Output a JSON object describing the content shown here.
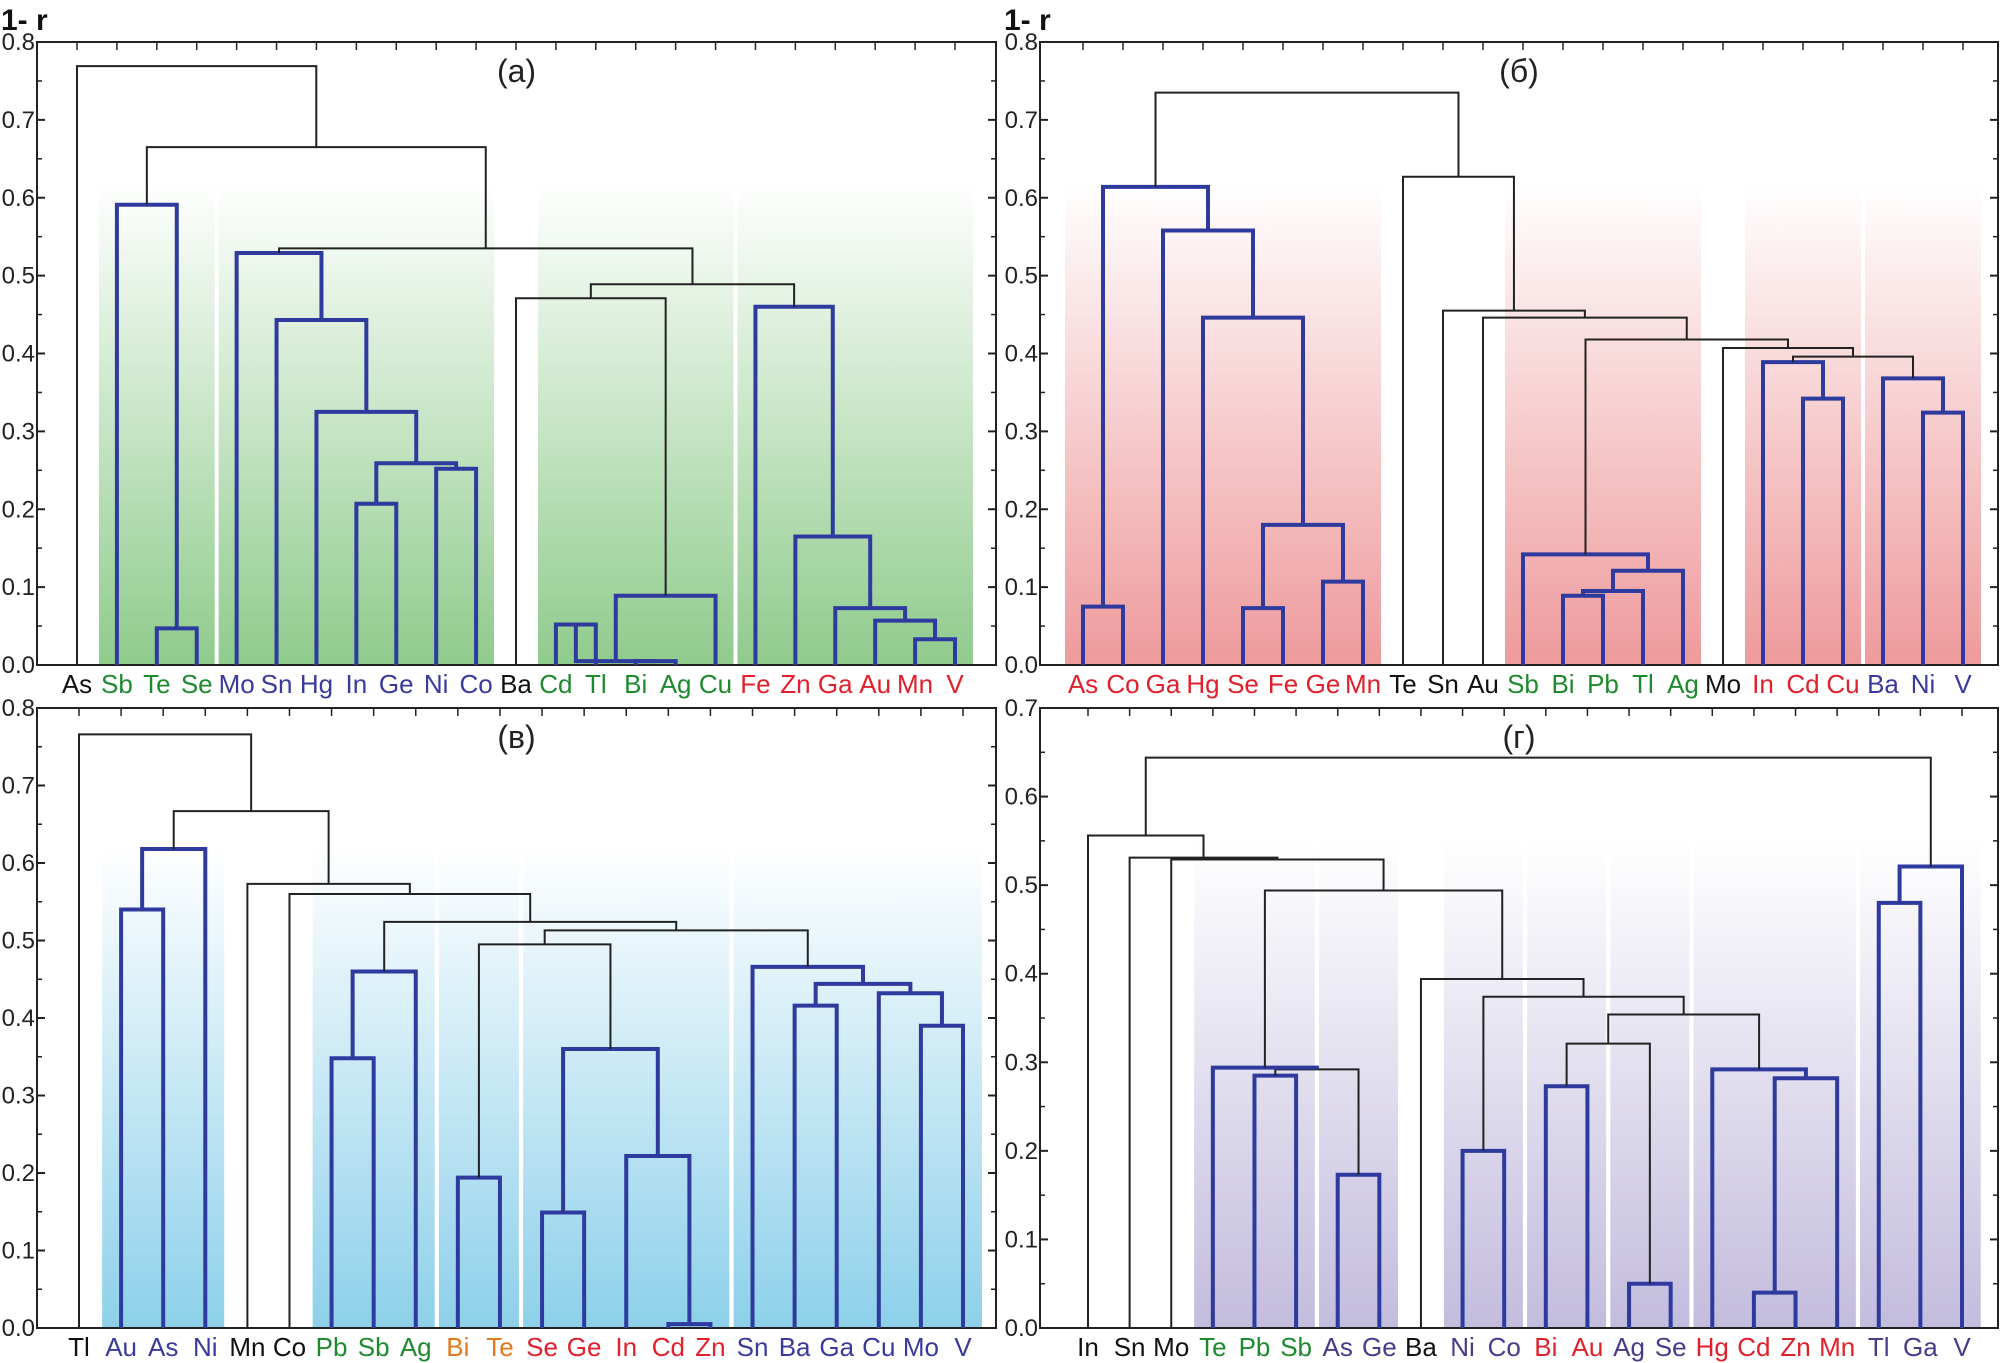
{
  "colors": {
    "cluster_line": "#2E3A9E",
    "tree_line": "#222222",
    "green_label": "#1E8A2E",
    "blue_label": "#3A3A9E",
    "red_label": "#E0202A",
    "orange_label": "#E07A1E",
    "purple_label": "#4B3A8A",
    "black_label": "#111111",
    "bg_green": "#8FCB8C",
    "bg_red": "#EE9A9C",
    "bg_blue": "#8DD0EA",
    "bg_purple": "#C3BCDD"
  },
  "chart_data": [
    {
      "type": "dendrogram",
      "title": "(а)",
      "ylabel": "1- r",
      "ylim": [
        0,
        0.8
      ],
      "yticks": [
        "0.0",
        "0.1",
        "0.2",
        "0.3",
        "0.4",
        "0.5",
        "0.6",
        "0.7",
        "0.8"
      ],
      "bg": "bg_green",
      "leaves": [
        {
          "name": "As",
          "color": "black_label"
        },
        {
          "name": "Sb",
          "color": "green_label"
        },
        {
          "name": "Te",
          "color": "green_label"
        },
        {
          "name": "Se",
          "color": "green_label"
        },
        {
          "name": "Mo",
          "color": "blue_label"
        },
        {
          "name": "Sn",
          "color": "blue_label"
        },
        {
          "name": "Hg",
          "color": "blue_label"
        },
        {
          "name": "In",
          "color": "blue_label"
        },
        {
          "name": "Ge",
          "color": "blue_label"
        },
        {
          "name": "Ni",
          "color": "blue_label"
        },
        {
          "name": "Co",
          "color": "blue_label"
        },
        {
          "name": "Ba",
          "color": "black_label"
        },
        {
          "name": "Cd",
          "color": "green_label"
        },
        {
          "name": "Tl",
          "color": "green_label"
        },
        {
          "name": "Bi",
          "color": "green_label"
        },
        {
          "name": "Ag",
          "color": "green_label"
        },
        {
          "name": "Cu",
          "color": "green_label"
        },
        {
          "name": "Fe",
          "color": "red_label"
        },
        {
          "name": "Zn",
          "color": "red_label"
        },
        {
          "name": "Ga",
          "color": "red_label"
        },
        {
          "name": "Au",
          "color": "red_label"
        },
        {
          "name": "Mn",
          "color": "red_label"
        },
        {
          "name": "V",
          "color": "red_label"
        }
      ],
      "bands": [
        [
          1,
          3
        ],
        [
          4,
          10
        ],
        [
          12,
          16
        ],
        [
          17,
          22
        ]
      ],
      "merges": [
        {
          "l": 2,
          "r": 3,
          "h": 0.047,
          "c": 1
        },
        {
          "l": 1,
          "r": "m0",
          "h": 0.591,
          "c": 1
        },
        {
          "l": 7,
          "r": 8,
          "h": 0.207,
          "c": 1
        },
        {
          "l": 9,
          "r": 10,
          "h": 0.252,
          "c": 1
        },
        {
          "l": "m2",
          "r": "m3",
          "h": 0.259,
          "c": 1
        },
        {
          "l": 6,
          "r": "m4",
          "h": 0.325,
          "c": 1
        },
        {
          "l": 5,
          "r": "m5",
          "h": 0.443,
          "c": 1
        },
        {
          "l": 4,
          "r": "m6",
          "h": 0.529,
          "c": 1
        },
        {
          "l": 14,
          "r": 15,
          "h": 0.005,
          "c": 1
        },
        {
          "l": 12,
          "r": 13,
          "h": 0.052,
          "c": 1
        },
        {
          "l": "m9",
          "r": "m8",
          "h": 0.005,
          "c": 1
        },
        {
          "l": "m10",
          "r": 16,
          "h": 0.089,
          "c": 1
        },
        {
          "l": 11,
          "r": "m11",
          "h": 0.471,
          "c": 0
        },
        {
          "l": 21,
          "r": 22,
          "h": 0.033,
          "c": 1
        },
        {
          "l": 20,
          "r": "m13",
          "h": 0.057,
          "c": 1
        },
        {
          "l": 19,
          "r": "m14",
          "h": 0.073,
          "c": 1
        },
        {
          "l": "m15",
          "r": "m14x",
          "h": 0.165,
          "c": 1
        },
        {
          "l": 17,
          "r": "m16",
          "h": 0.46,
          "c": 1
        },
        {
          "l": "m12",
          "r": "m17",
          "h": 0.489,
          "c": 0
        },
        {
          "l": "m7",
          "r": "m18",
          "h": 0.535,
          "c": 0
        },
        {
          "l": "m1",
          "r": "m19",
          "h": 0.665,
          "c": 0
        },
        {
          "l": 0,
          "r": "m20",
          "h": 0.769,
          "c": 0
        }
      ]
    },
    {
      "type": "dendrogram",
      "title": "(б)",
      "ylabel": "1- r",
      "ylim": [
        0,
        0.8
      ],
      "yticks": [
        "0.0",
        "0.1",
        "0.2",
        "0.3",
        "0.4",
        "0.5",
        "0.6",
        "0.7",
        "0.8"
      ],
      "bg": "bg_red",
      "leaves": [
        {
          "name": "As",
          "color": "red_label"
        },
        {
          "name": "Co",
          "color": "red_label"
        },
        {
          "name": "Ga",
          "color": "red_label"
        },
        {
          "name": "Hg",
          "color": "red_label"
        },
        {
          "name": "Se",
          "color": "red_label"
        },
        {
          "name": "Fe",
          "color": "red_label"
        },
        {
          "name": "Ge",
          "color": "red_label"
        },
        {
          "name": "Mn",
          "color": "red_label"
        },
        {
          "name": "Te",
          "color": "black_label"
        },
        {
          "name": "Sn",
          "color": "black_label"
        },
        {
          "name": "Au",
          "color": "black_label"
        },
        {
          "name": "Sb",
          "color": "green_label"
        },
        {
          "name": "Bi",
          "color": "green_label"
        },
        {
          "name": "Pb",
          "color": "green_label"
        },
        {
          "name": "Tl",
          "color": "green_label"
        },
        {
          "name": "Ag",
          "color": "green_label"
        },
        {
          "name": "Mo",
          "color": "black_label"
        },
        {
          "name": "In",
          "color": "red_label"
        },
        {
          "name": "Cd",
          "color": "red_label"
        },
        {
          "name": "Cu",
          "color": "red_label"
        },
        {
          "name": "Ba",
          "color": "blue_label"
        },
        {
          "name": "Ni",
          "color": "blue_label"
        },
        {
          "name": "V",
          "color": "blue_label"
        }
      ],
      "bands": [
        [
          0,
          7
        ],
        [
          11,
          15
        ],
        [
          17,
          19
        ],
        [
          20,
          22
        ]
      ],
      "merges": [
        {
          "l": 0,
          "r": 1,
          "h": 0.075,
          "c": 1
        },
        {
          "l": 4,
          "r": 5,
          "h": 0.073,
          "c": 1
        },
        {
          "l": 6,
          "r": 7,
          "h": 0.107,
          "c": 1
        },
        {
          "l": "m1",
          "r": "m2",
          "h": 0.18,
          "c": 1
        },
        {
          "l": 3,
          "r": "m3",
          "h": 0.446,
          "c": 1
        },
        {
          "l": 2,
          "r": "m4",
          "h": 0.558,
          "c": 1
        },
        {
          "l": "m0",
          "r": "m5",
          "h": 0.614,
          "c": 1
        },
        {
          "l": 12,
          "r": 13,
          "h": 0.089,
          "c": 1
        },
        {
          "l": "m7",
          "r": 14,
          "h": 0.095,
          "c": 1
        },
        {
          "l": "m8",
          "r": 15,
          "h": 0.121,
          "c": 1
        },
        {
          "l": 11,
          "r": "m9",
          "h": 0.142,
          "c": 1
        },
        {
          "l": 18,
          "r": 19,
          "h": 0.342,
          "c": 1
        },
        {
          "l": 17,
          "r": "m11",
          "h": 0.389,
          "c": 1
        },
        {
          "l": 21,
          "r": 22,
          "h": 0.324,
          "c": 1
        },
        {
          "l": 20,
          "r": "m13",
          "h": 0.368,
          "c": 1
        },
        {
          "l": "m12",
          "r": "m14",
          "h": 0.396,
          "c": 0
        },
        {
          "l": 16,
          "r": "m15",
          "h": 0.407,
          "c": 0
        },
        {
          "l": "m10",
          "r": "m16",
          "h": 0.418,
          "c": 0
        },
        {
          "l": 10,
          "r": "m17",
          "h": 0.446,
          "c": 0
        },
        {
          "l": 9,
          "r": "m18",
          "h": 0.455,
          "c": 0
        },
        {
          "l": 8,
          "r": "m19",
          "h": 0.627,
          "c": 0
        },
        {
          "l": "m6",
          "r": "m20",
          "h": 0.735,
          "c": 0
        }
      ]
    },
    {
      "type": "dendrogram",
      "title": "(в)",
      "ylabel": "",
      "ylim": [
        0,
        0.8
      ],
      "yticks": [
        "0.0",
        "0.1",
        "0.2",
        "0.3",
        "0.4",
        "0.5",
        "0.6",
        "0.7",
        "0.8"
      ],
      "bg": "bg_blue",
      "leaves": [
        {
          "name": "Tl",
          "color": "black_label"
        },
        {
          "name": "Au",
          "color": "blue_label"
        },
        {
          "name": "As",
          "color": "blue_label"
        },
        {
          "name": "Ni",
          "color": "blue_label"
        },
        {
          "name": "Mn",
          "color": "black_label"
        },
        {
          "name": "Co",
          "color": "black_label"
        },
        {
          "name": "Pb",
          "color": "green_label"
        },
        {
          "name": "Sb",
          "color": "green_label"
        },
        {
          "name": "Ag",
          "color": "green_label"
        },
        {
          "name": "Bi",
          "color": "orange_label"
        },
        {
          "name": "Te",
          "color": "orange_label"
        },
        {
          "name": "Se",
          "color": "red_label"
        },
        {
          "name": "Ge",
          "color": "red_label"
        },
        {
          "name": "In",
          "color": "red_label"
        },
        {
          "name": "Cd",
          "color": "red_label"
        },
        {
          "name": "Zn",
          "color": "red_label"
        },
        {
          "name": "Sn",
          "color": "blue_label"
        },
        {
          "name": "Ba",
          "color": "blue_label"
        },
        {
          "name": "Ga",
          "color": "blue_label"
        },
        {
          "name": "Cu",
          "color": "blue_label"
        },
        {
          "name": "Mo",
          "color": "blue_label"
        },
        {
          "name": "V",
          "color": "blue_label"
        }
      ],
      "bands": [
        [
          1,
          3
        ],
        [
          6,
          8
        ],
        [
          9,
          10
        ],
        [
          11,
          15
        ],
        [
          16,
          21
        ]
      ],
      "merges": [
        {
          "l": 1,
          "r": 2,
          "h": 0.54,
          "c": 1
        },
        {
          "l": "m0",
          "r": 3,
          "h": 0.618,
          "c": 1
        },
        {
          "l": 6,
          "r": 7,
          "h": 0.348,
          "c": 1
        },
        {
          "l": "m2",
          "r": 8,
          "h": 0.46,
          "c": 1
        },
        {
          "l": 9,
          "r": 10,
          "h": 0.194,
          "c": 1
        },
        {
          "l": 11,
          "r": 12,
          "h": 0.149,
          "c": 1
        },
        {
          "l": 14,
          "r": 15,
          "h": 0.005,
          "c": 1
        },
        {
          "l": 13,
          "r": "m6",
          "h": 0.222,
          "c": 1
        },
        {
          "l": "m5",
          "r": "m7",
          "h": 0.36,
          "c": 1
        },
        {
          "l": "m4",
          "r": "m8",
          "h": 0.495,
          "c": 0
        },
        {
          "l": 20,
          "r": 21,
          "h": 0.39,
          "c": 1
        },
        {
          "l": 19,
          "r": "m10",
          "h": 0.432,
          "c": 1
        },
        {
          "l": 17,
          "r": 18,
          "h": 0.416,
          "c": 1
        },
        {
          "l": "m12",
          "r": "m11",
          "h": 0.444,
          "c": 1
        },
        {
          "l": 16,
          "r": "m13",
          "h": 0.466,
          "c": 1
        },
        {
          "l": "m9",
          "r": "m14",
          "h": 0.513,
          "c": 0
        },
        {
          "l": "m3",
          "r": "m15",
          "h": 0.524,
          "c": 0
        },
        {
          "l": 5,
          "r": "m16",
          "h": 0.56,
          "c": 0
        },
        {
          "l": 4,
          "r": "m17",
          "h": 0.573,
          "c": 0
        },
        {
          "l": "m1",
          "r": "m18",
          "h": 0.667,
          "c": 0
        },
        {
          "l": 0,
          "r": "m19",
          "h": 0.766,
          "c": 0
        }
      ]
    },
    {
      "type": "dendrogram",
      "title": "(г)",
      "ylabel": "",
      "ylim": [
        0,
        0.7
      ],
      "yticks": [
        "0.0",
        "0.1",
        "0.2",
        "0.3",
        "0.4",
        "0.5",
        "0.6",
        "0.7"
      ],
      "bg": "bg_purple",
      "leaves": [
        {
          "name": "In",
          "color": "black_label"
        },
        {
          "name": "Sn",
          "color": "black_label"
        },
        {
          "name": "Mo",
          "color": "black_label"
        },
        {
          "name": "Te",
          "color": "green_label"
        },
        {
          "name": "Pb",
          "color": "green_label"
        },
        {
          "name": "Sb",
          "color": "green_label"
        },
        {
          "name": "As",
          "color": "purple_label"
        },
        {
          "name": "Ge",
          "color": "purple_label"
        },
        {
          "name": "Ba",
          "color": "black_label"
        },
        {
          "name": "Ni",
          "color": "purple_label"
        },
        {
          "name": "Co",
          "color": "purple_label"
        },
        {
          "name": "Bi",
          "color": "red_label"
        },
        {
          "name": "Au",
          "color": "red_label"
        },
        {
          "name": "Ag",
          "color": "purple_label"
        },
        {
          "name": "Se",
          "color": "purple_label"
        },
        {
          "name": "Hg",
          "color": "red_label"
        },
        {
          "name": "Cd",
          "color": "red_label"
        },
        {
          "name": "Zn",
          "color": "red_label"
        },
        {
          "name": "Mn",
          "color": "red_label"
        },
        {
          "name": "Tl",
          "color": "purple_label"
        },
        {
          "name": "Ga",
          "color": "purple_label"
        },
        {
          "name": "V",
          "color": "purple_label"
        }
      ],
      "bands": [
        [
          3,
          5
        ],
        [
          6,
          7
        ],
        [
          9,
          10
        ],
        [
          11,
          12
        ],
        [
          13,
          14
        ],
        [
          15,
          18
        ],
        [
          19,
          21
        ]
      ],
      "merges": [
        {
          "l": 4,
          "r": 5,
          "h": 0.285,
          "c": 1
        },
        {
          "l": 6,
          "r": 7,
          "h": 0.173,
          "c": 1
        },
        {
          "l": "m0",
          "r": "m1",
          "h": 0.292,
          "c": 0
        },
        {
          "l": 3,
          "r": "m2",
          "h": 0.294,
          "c": 1
        },
        {
          "l": 9,
          "r": 10,
          "h": 0.2,
          "c": 1
        },
        {
          "l": 11,
          "r": 12,
          "h": 0.273,
          "c": 1
        },
        {
          "l": 13,
          "r": 14,
          "h": 0.05,
          "c": 1
        },
        {
          "l": "m5",
          "r": "m6",
          "h": 0.321,
          "c": 0
        },
        {
          "l": 16,
          "r": 17,
          "h": 0.04,
          "c": 1
        },
        {
          "l": "m8",
          "r": 18,
          "h": 0.282,
          "c": 1
        },
        {
          "l": 15,
          "r": "m9",
          "h": 0.292,
          "c": 1
        },
        {
          "l": "m7",
          "r": "m10",
          "h": 0.354,
          "c": 0
        },
        {
          "l": "m4",
          "r": "m11",
          "h": 0.374,
          "c": 0
        },
        {
          "l": 8,
          "r": "m12",
          "h": 0.394,
          "c": 0
        },
        {
          "l": "m3",
          "r": "m13",
          "h": 0.494,
          "c": 0
        },
        {
          "l": 2,
          "r": "m14",
          "h": 0.529,
          "c": 0
        },
        {
          "l": 1,
          "r": "m15",
          "h": 0.531,
          "c": 0
        },
        {
          "l": 0,
          "r": "m16",
          "h": 0.556,
          "c": 0
        },
        {
          "l": 19,
          "r": 20,
          "h": 0.48,
          "c": 1
        },
        {
          "l": "m18",
          "r": 21,
          "h": 0.521,
          "c": 1
        },
        {
          "l": "m17",
          "r": "m19",
          "h": 0.644,
          "c": 0
        }
      ]
    }
  ]
}
